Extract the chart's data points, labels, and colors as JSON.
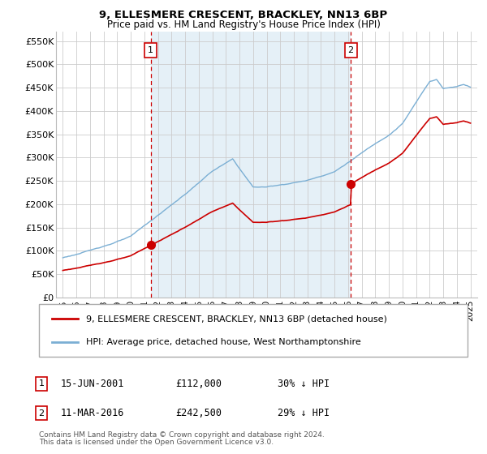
{
  "title1": "9, ELLESMERE CRESCENT, BRACKLEY, NN13 6BP",
  "title2": "Price paid vs. HM Land Registry's House Price Index (HPI)",
  "ylabel_ticks": [
    "£0",
    "£50K",
    "£100K",
    "£150K",
    "£200K",
    "£250K",
    "£300K",
    "£350K",
    "£400K",
    "£450K",
    "£500K",
    "£550K"
  ],
  "ytick_vals": [
    0,
    50000,
    100000,
    150000,
    200000,
    250000,
    300000,
    350000,
    400000,
    450000,
    500000,
    550000
  ],
  "ylim": [
    0,
    570000
  ],
  "legend_line1": "9, ELLESMERE CRESCENT, BRACKLEY, NN13 6BP (detached house)",
  "legend_line2": "HPI: Average price, detached house, West Northamptonshire",
  "annotation1_label": "1",
  "annotation1_date": "15-JUN-2001",
  "annotation1_price": "£112,000",
  "annotation1_hpi": "30% ↓ HPI",
  "annotation2_label": "2",
  "annotation2_date": "11-MAR-2016",
  "annotation2_price": "£242,500",
  "annotation2_hpi": "29% ↓ HPI",
  "footnote1": "Contains HM Land Registry data © Crown copyright and database right 2024.",
  "footnote2": "This data is licensed under the Open Government Licence v3.0.",
  "red_color": "#cc0000",
  "blue_color": "#7bafd4",
  "blue_fill": "#daeaf5",
  "vline_color": "#cc0000",
  "background_color": "#ffffff",
  "grid_color": "#cccccc",
  "purchase1_year": 2001.46,
  "purchase1_price": 112000,
  "purchase2_year": 2016.19,
  "purchase2_price": 242500
}
